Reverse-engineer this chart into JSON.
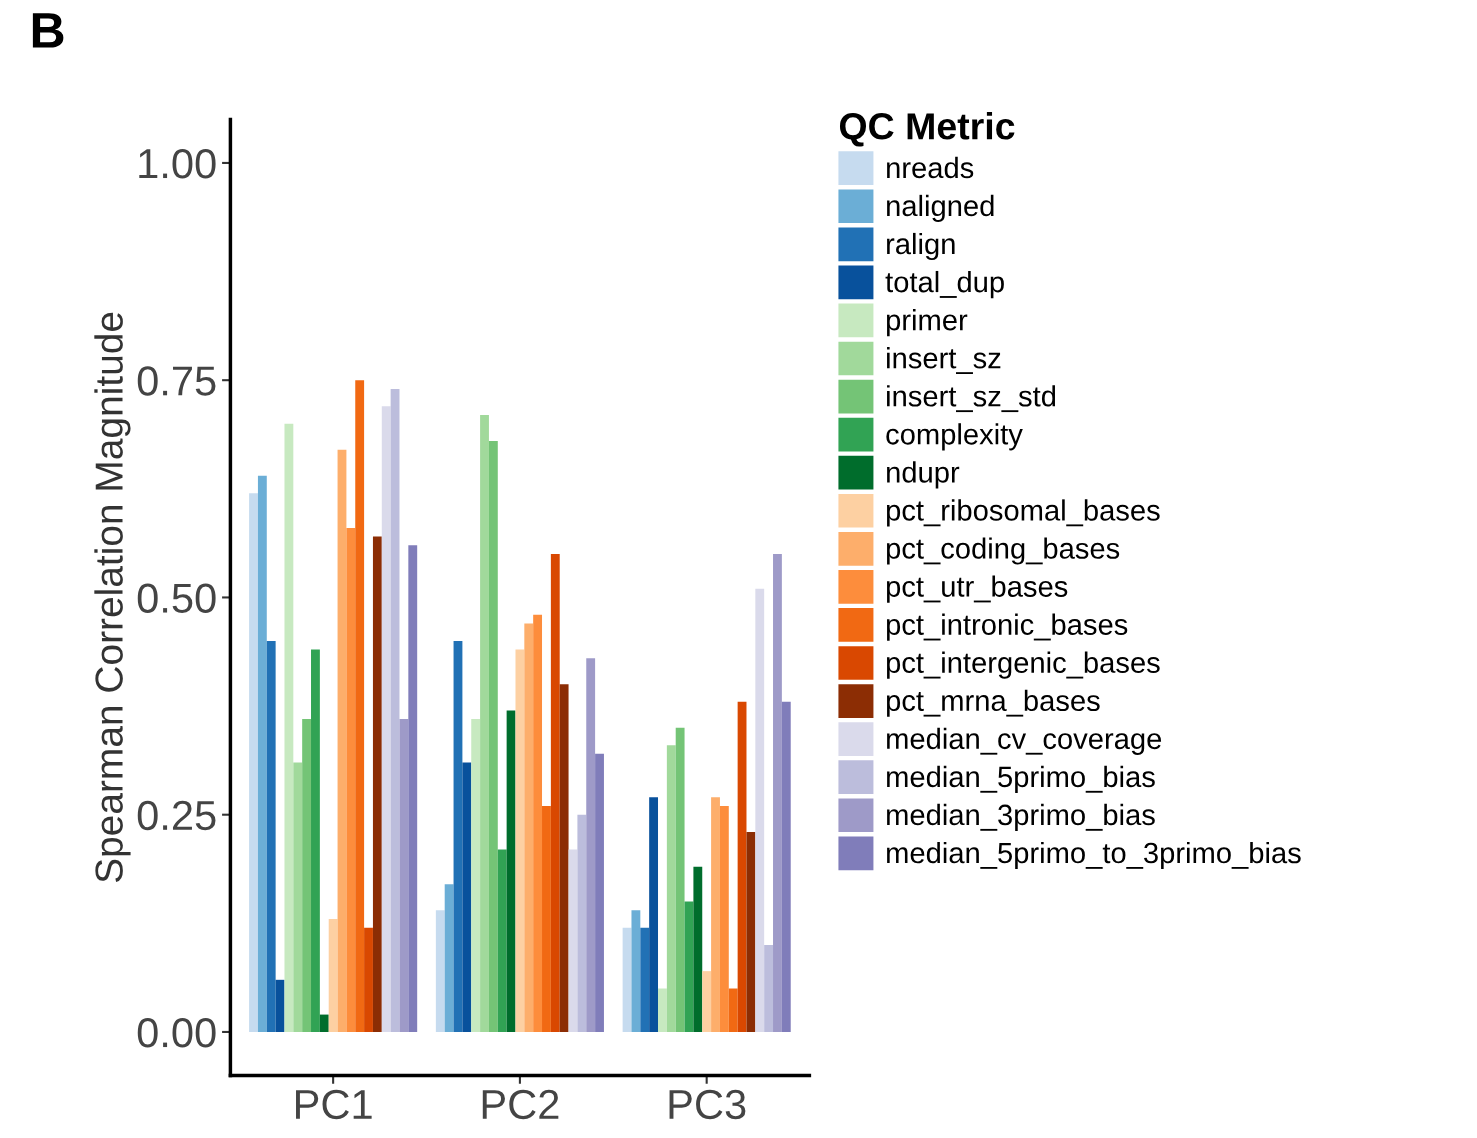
{
  "chart_data": {
    "type": "bar",
    "ylabel": "Spearman Correlation Magnitude",
    "legend_title": "QC Metric",
    "annotations": [
      "B"
    ],
    "categories": [
      "PC1",
      "PC2",
      "PC3"
    ],
    "ylim": [
      -0.05,
      1.05
    ],
    "yticks": [
      {
        "value": 0,
        "label": "0.00"
      },
      {
        "value": 0.25,
        "label": "0.25"
      },
      {
        "value": 0.5,
        "label": "0.50"
      },
      {
        "value": 0.75,
        "label": "0.75"
      },
      {
        "value": 1,
        "label": "1.00"
      }
    ],
    "grid": false,
    "legend": "right",
    "series": [
      {
        "name": "nreads",
        "color": "#c6dbef",
        "values": [
          0.62,
          0.14,
          0.12
        ]
      },
      {
        "name": "naligned",
        "color": "#6baed6",
        "values": [
          0.64,
          0.17,
          0.14
        ]
      },
      {
        "name": "ralign",
        "color": "#2171b5",
        "values": [
          0.45,
          0.45,
          0.12
        ]
      },
      {
        "name": "total_dup",
        "color": "#08519c",
        "values": [
          0.06,
          0.31,
          0.27
        ]
      },
      {
        "name": "primer",
        "color": "#c7e9c0",
        "values": [
          0.7,
          0.36,
          0.05
        ]
      },
      {
        "name": "insert_sz",
        "color": "#a1d99b",
        "values": [
          0.31,
          0.71,
          0.33
        ]
      },
      {
        "name": "insert_sz_std",
        "color": "#74c476",
        "values": [
          0.36,
          0.68,
          0.35
        ]
      },
      {
        "name": "complexity",
        "color": "#31a354",
        "values": [
          0.44,
          0.21,
          0.15
        ]
      },
      {
        "name": "ndupr",
        "color": "#006d2c",
        "values": [
          0.02,
          0.37,
          0.19
        ]
      },
      {
        "name": "pct_ribosomal_bases",
        "color": "#fdd0a2",
        "values": [
          0.13,
          0.44,
          0.07
        ]
      },
      {
        "name": "pct_coding_bases",
        "color": "#fdae6b",
        "values": [
          0.67,
          0.47,
          0.27
        ]
      },
      {
        "name": "pct_utr_bases",
        "color": "#fd8d3c",
        "values": [
          0.58,
          0.48,
          0.26
        ]
      },
      {
        "name": "pct_intronic_bases",
        "color": "#f16913",
        "values": [
          0.75,
          0.26,
          0.05
        ]
      },
      {
        "name": "pct_intergenic_bases",
        "color": "#d94801",
        "values": [
          0.12,
          0.55,
          0.38
        ]
      },
      {
        "name": "pct_mrna_bases",
        "color": "#8c2d04",
        "values": [
          0.57,
          0.4,
          0.23
        ]
      },
      {
        "name": "median_cv_coverage",
        "color": "#dadaeb",
        "values": [
          0.72,
          0.21,
          0.51
        ]
      },
      {
        "name": "median_5primo_bias",
        "color": "#bcbddc",
        "values": [
          0.74,
          0.25,
          0.1
        ]
      },
      {
        "name": "median_3primo_bias",
        "color": "#9e9ac8",
        "values": [
          0.36,
          0.43,
          0.55
        ]
      },
      {
        "name": "median_5primo_to_3primo_bias",
        "color": "#807dba",
        "values": [
          0.56,
          0.32,
          0.38
        ]
      }
    ]
  }
}
